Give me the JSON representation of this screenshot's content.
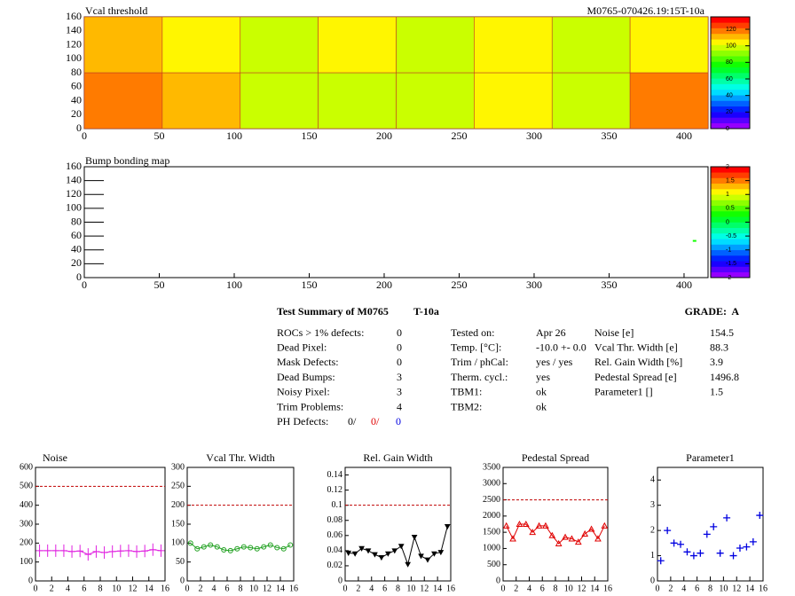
{
  "chart_data": [
    {
      "type": "heatmap",
      "title": "Vcal threshold",
      "subtitle": "M0765-070426.19:15T-10a",
      "x_edges": [
        0,
        52,
        104,
        156,
        208,
        260,
        312,
        364,
        416
      ],
      "y_edges": [
        0,
        80,
        160
      ],
      "z": [
        [
          120,
          108,
          95,
          100,
          95,
          105,
          100,
          120
        ],
        [
          110,
          105,
          95,
          105,
          100,
          105,
          100,
          105
        ]
      ],
      "xlim": [
        0,
        416
      ],
      "xticks": [
        0,
        50,
        100,
        150,
        200,
        250,
        300,
        350,
        400
      ],
      "ylim": [
        0,
        160
      ],
      "yticks": [
        0,
        20,
        40,
        60,
        80,
        100,
        120,
        140,
        160
      ],
      "zlim": [
        0,
        135
      ],
      "zticks": [
        0,
        20,
        40,
        60,
        80,
        100,
        120
      ],
      "colormap": "rainbow"
    },
    {
      "type": "scatter",
      "title": "Bump bonding map",
      "x": [
        407
      ],
      "y": [
        53
      ],
      "z": [
        0.3
      ],
      "xlim": [
        0,
        416
      ],
      "xticks": [
        0,
        50,
        100,
        150,
        200,
        250,
        300,
        350,
        400
      ],
      "ylim": [
        0,
        160
      ],
      "yticks": [
        0,
        20,
        40,
        60,
        80,
        100,
        120,
        140,
        160
      ],
      "zlim": [
        -2,
        2
      ],
      "zticks": [
        -2,
        -1.5,
        -1,
        -0.5,
        0,
        0.5,
        1,
        1.5,
        2
      ],
      "colormap": "rainbow"
    },
    {
      "type": "line",
      "title": "Noise",
      "color": "#e020e0",
      "marker": "plus",
      "line": true,
      "x": [
        0,
        1,
        2,
        3,
        4,
        5,
        6,
        7,
        8,
        9,
        10,
        11,
        12,
        13,
        14,
        15
      ],
      "values": [
        160,
        160,
        160,
        160,
        155,
        158,
        140,
        155,
        150,
        155,
        158,
        160,
        155,
        158,
        165,
        160
      ],
      "reference": 500,
      "xlim": [
        0,
        16
      ],
      "xticks": [
        0,
        2,
        4,
        6,
        8,
        10,
        12,
        14,
        16
      ],
      "ylim": [
        0,
        600
      ],
      "yticks": [
        0,
        100,
        200,
        300,
        400,
        500,
        600
      ]
    },
    {
      "type": "line",
      "title": "Vcal Thr. Width",
      "color": "#20a020",
      "marker": "circle",
      "line": true,
      "x": [
        0,
        1,
        2,
        3,
        4,
        5,
        6,
        7,
        8,
        9,
        10,
        11,
        12,
        13,
        14,
        15
      ],
      "values": [
        100,
        85,
        90,
        95,
        90,
        82,
        80,
        85,
        90,
        88,
        85,
        90,
        95,
        88,
        85,
        95
      ],
      "reference": 200,
      "xlim": [
        0,
        16
      ],
      "xticks": [
        0,
        2,
        4,
        6,
        8,
        10,
        12,
        14,
        16
      ],
      "ylim": [
        0,
        300
      ],
      "yticks": [
        0,
        50,
        100,
        150,
        200,
        250,
        300
      ]
    },
    {
      "type": "line",
      "title": "Rel. Gain Width",
      "color": "#000000",
      "marker": "triangle-down",
      "line": true,
      "x": [
        0,
        1,
        2,
        3,
        4,
        5,
        6,
        7,
        8,
        9,
        10,
        11,
        12,
        13,
        14,
        15
      ],
      "values": [
        0.037,
        0.036,
        0.043,
        0.04,
        0.035,
        0.031,
        0.036,
        0.04,
        0.046,
        0.022,
        0.058,
        0.033,
        0.028,
        0.036,
        0.038,
        0.072
      ],
      "reference": 0.1,
      "xlim": [
        0,
        16
      ],
      "xticks": [
        0,
        2,
        4,
        6,
        8,
        10,
        12,
        14,
        16
      ],
      "ylim": [
        0,
        0.15
      ],
      "yticks": [
        0,
        0.02,
        0.04,
        0.06,
        0.08,
        0.1,
        0.12,
        0.14
      ]
    },
    {
      "type": "line",
      "title": "Pedestal Spread",
      "color": "#e00000",
      "marker": "triangle-up",
      "line": true,
      "x": [
        0,
        1,
        2,
        3,
        4,
        5,
        6,
        7,
        8,
        9,
        10,
        11,
        12,
        13,
        14,
        15
      ],
      "values": [
        1700,
        1300,
        1750,
        1750,
        1500,
        1700,
        1700,
        1400,
        1150,
        1350,
        1300,
        1200,
        1450,
        1600,
        1300,
        1700
      ],
      "reference": 2500,
      "xlim": [
        0,
        16
      ],
      "xticks": [
        0,
        2,
        4,
        6,
        8,
        10,
        12,
        14,
        16
      ],
      "ylim": [
        0,
        3500
      ],
      "yticks": [
        0,
        500,
        1000,
        1500,
        2000,
        2500,
        3000,
        3500
      ]
    },
    {
      "type": "line",
      "title": "Parameter1",
      "color": "#0000e0",
      "marker": "cross",
      "line": false,
      "x": [
        0,
        1,
        2,
        3,
        4,
        5,
        6,
        7,
        8,
        9,
        10,
        11,
        12,
        13,
        14,
        15
      ],
      "values": [
        0.8,
        2.0,
        1.5,
        1.45,
        1.15,
        1.0,
        1.1,
        1.85,
        2.15,
        1.1,
        2.5,
        1.0,
        1.3,
        1.35,
        1.55,
        2.6
      ],
      "xlim": [
        0,
        16
      ],
      "xticks": [
        0,
        2,
        4,
        6,
        8,
        10,
        12,
        14,
        16
      ],
      "ylim": [
        0,
        4.5
      ],
      "yticks": [
        0,
        1,
        2,
        3,
        4
      ]
    }
  ],
  "summary": {
    "title": "Test Summary of M0765",
    "temp": "T-10a",
    "grade": "GRADE:  A",
    "left": [
      [
        "ROCs > 1% defects:",
        "0"
      ],
      [
        "Dead Pixel:",
        "0"
      ],
      [
        "Mask Defects:",
        "0"
      ],
      [
        "Dead Bumps:",
        "3"
      ],
      [
        "Noisy Pixel:",
        "3"
      ],
      [
        "Trim Problems:",
        "4"
      ]
    ],
    "ph_label": "PH Defects:",
    "ph_values": [
      "0/",
      "0/",
      "0"
    ],
    "middle": [
      [
        "Tested on:",
        "Apr 26"
      ],
      [
        "Temp. [°C]:",
        "-10.0 +- 0.0"
      ],
      [
        "Trim / phCal:",
        "yes / yes"
      ],
      [
        "Therm. cycl.:",
        "yes"
      ],
      [
        "TBM1:",
        "ok"
      ],
      [
        "TBM2:",
        "ok"
      ]
    ],
    "right": [
      [
        "Noise [e]",
        "154.5"
      ],
      [
        "Vcal Thr. Width [e]",
        "88.3"
      ],
      [
        "Rel. Gain Width [%]",
        "3.9"
      ],
      [
        "Pedestal Spread [e]",
        "1496.8"
      ],
      [
        "Parameter1 []",
        "1.5"
      ]
    ]
  }
}
